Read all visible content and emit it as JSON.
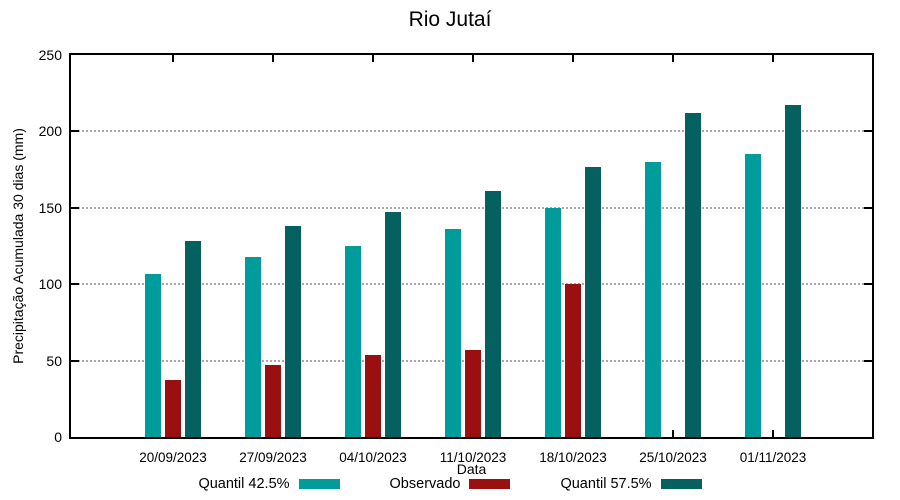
{
  "title": "Rio Jutaí",
  "chart_data": {
    "type": "bar",
    "title": "Rio Jutaí",
    "xlabel": "Data",
    "ylabel": "Precipitação Acumulada 30 dias (mm)",
    "ylim": [
      0,
      250
    ],
    "yticks": [
      0,
      50,
      100,
      150,
      200,
      250
    ],
    "grid": "horizontal-dotted",
    "legend_position": "bottom-center",
    "categories": [
      "20/09/2023",
      "27/09/2023",
      "04/10/2023",
      "11/10/2023",
      "18/10/2023",
      "25/10/2023",
      "01/11/2023"
    ],
    "series": [
      {
        "name": "Quantil 42.5%",
        "color": "#009c9c",
        "values": [
          107,
          118,
          125,
          136,
          150,
          180,
          185
        ]
      },
      {
        "name": "Observado",
        "color": "#9a0f0f",
        "values": [
          37,
          47,
          54,
          57,
          100,
          null,
          null
        ]
      },
      {
        "name": "Quantil 57.5%",
        "color": "#056060",
        "values": [
          128,
          138,
          147,
          161,
          177,
          212,
          217
        ]
      }
    ],
    "colors": {
      "axis": "#000000",
      "grid": "#a9a9a9",
      "background": "#ffffff"
    }
  }
}
